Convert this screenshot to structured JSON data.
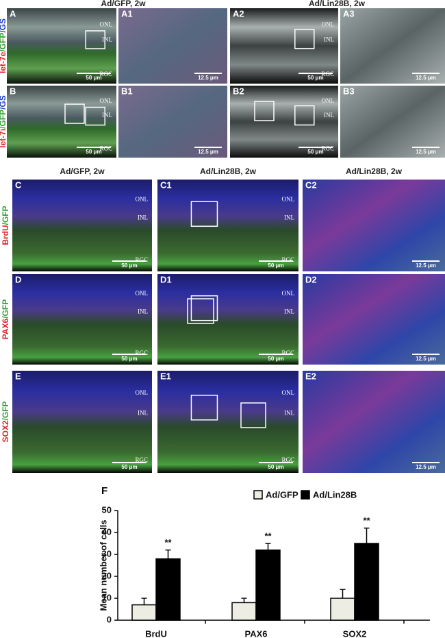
{
  "figure": {
    "top": {
      "headers": [
        "Ad/GFP, 2w",
        "Ad/Lin28B, 2w"
      ],
      "rows": [
        {
          "label_parts": [
            {
              "text": "let-7e",
              "color": "#e02020"
            },
            {
              "text": "/GFP",
              "color": "#2ea02e"
            },
            {
              "text": "/GS",
              "color": "#2040c0"
            }
          ],
          "panels": [
            {
              "letter": "A",
              "layers": [
                "ONL",
                "INL",
                "RGC"
              ],
              "scale": "50 μm"
            },
            {
              "letter": "A1",
              "scale": "12.5 μm"
            },
            {
              "letter": "A2",
              "layers": [
                "ONL",
                "INL",
                "RGC"
              ],
              "scale": "50 μm"
            },
            {
              "letter": "A3",
              "scale": "12.5 μm"
            }
          ]
        },
        {
          "label_parts": [
            {
              "text": "let-7i",
              "color": "#e02020"
            },
            {
              "text": "/GFP",
              "color": "#2ea02e"
            },
            {
              "text": "/GS",
              "color": "#2040c0"
            }
          ],
          "panels": [
            {
              "letter": "B",
              "layers": [
                "ONL",
                "INL",
                "RGC"
              ],
              "scale": "50 μm"
            },
            {
              "letter": "B1",
              "scale": "12.5 μm"
            },
            {
              "letter": "B2",
              "layers": [
                "ONL",
                "INL",
                "RGC"
              ],
              "scale": "50 μm"
            },
            {
              "letter": "B3",
              "scale": "12.5 μm"
            }
          ]
        }
      ]
    },
    "middle": {
      "headers": [
        "Ad/GFP, 2w",
        "Ad/Lin28B, 2w",
        "Ad/Lin28B, 2w"
      ],
      "rows": [
        {
          "label_parts": [
            {
              "text": "BrdU",
              "color": "#e02020"
            },
            {
              "text": "/GFP",
              "color": "#2ea02e"
            }
          ],
          "panels": [
            {
              "letter": "C",
              "layers": [
                "ONL",
                "INL",
                "RGC"
              ],
              "scale": "50 μm"
            },
            {
              "letter": "C1",
              "layers": [
                "ONL",
                "INL",
                "RGC"
              ],
              "scale": "50 μm"
            },
            {
              "letter": "C2",
              "scale": "12.5 μm"
            }
          ]
        },
        {
          "label_parts": [
            {
              "text": "PAX6",
              "color": "#e02020"
            },
            {
              "text": "/GFP",
              "color": "#2ea02e"
            }
          ],
          "panels": [
            {
              "letter": "D",
              "layers": [
                "ONL",
                "INL",
                "RGC"
              ],
              "scale": "50 μm"
            },
            {
              "letter": "D1",
              "layers": [
                "ONL",
                "INL",
                "RGC"
              ],
              "scale": "50 μm"
            },
            {
              "letter": "D2",
              "scale": "12.5 μm"
            }
          ]
        },
        {
          "label_parts": [
            {
              "text": "SOX2",
              "color": "#e02020"
            },
            {
              "text": "/GFP",
              "color": "#2ea02e"
            }
          ],
          "panels": [
            {
              "letter": "E",
              "layers": [
                "ONL",
                "INL",
                "RGC"
              ],
              "scale": "50 μm"
            },
            {
              "letter": "E1",
              "layers": [
                "ONL",
                "INL",
                "RGC"
              ],
              "scale": "50 μm"
            },
            {
              "letter": "E2",
              "scale": "12.5 μm"
            }
          ]
        }
      ]
    }
  },
  "chart_data": {
    "type": "bar",
    "panel_label": "F",
    "ylabel": "Mean number of cells",
    "categories": [
      "BrdU",
      "PAX6",
      "SOX2"
    ],
    "series": [
      {
        "name": "Ad/GFP",
        "color": "#eeede4",
        "values": [
          7,
          8,
          10
        ],
        "errors": [
          3,
          2,
          4
        ]
      },
      {
        "name": "Ad/Lin28B",
        "color": "#000000",
        "values": [
          28,
          32,
          35
        ],
        "errors": [
          4,
          3,
          7
        ],
        "annotations": [
          "**",
          "**",
          "**"
        ]
      }
    ],
    "ylim": [
      0,
      50
    ],
    "yticks": [
      0,
      10,
      20,
      30,
      40,
      50
    ]
  }
}
